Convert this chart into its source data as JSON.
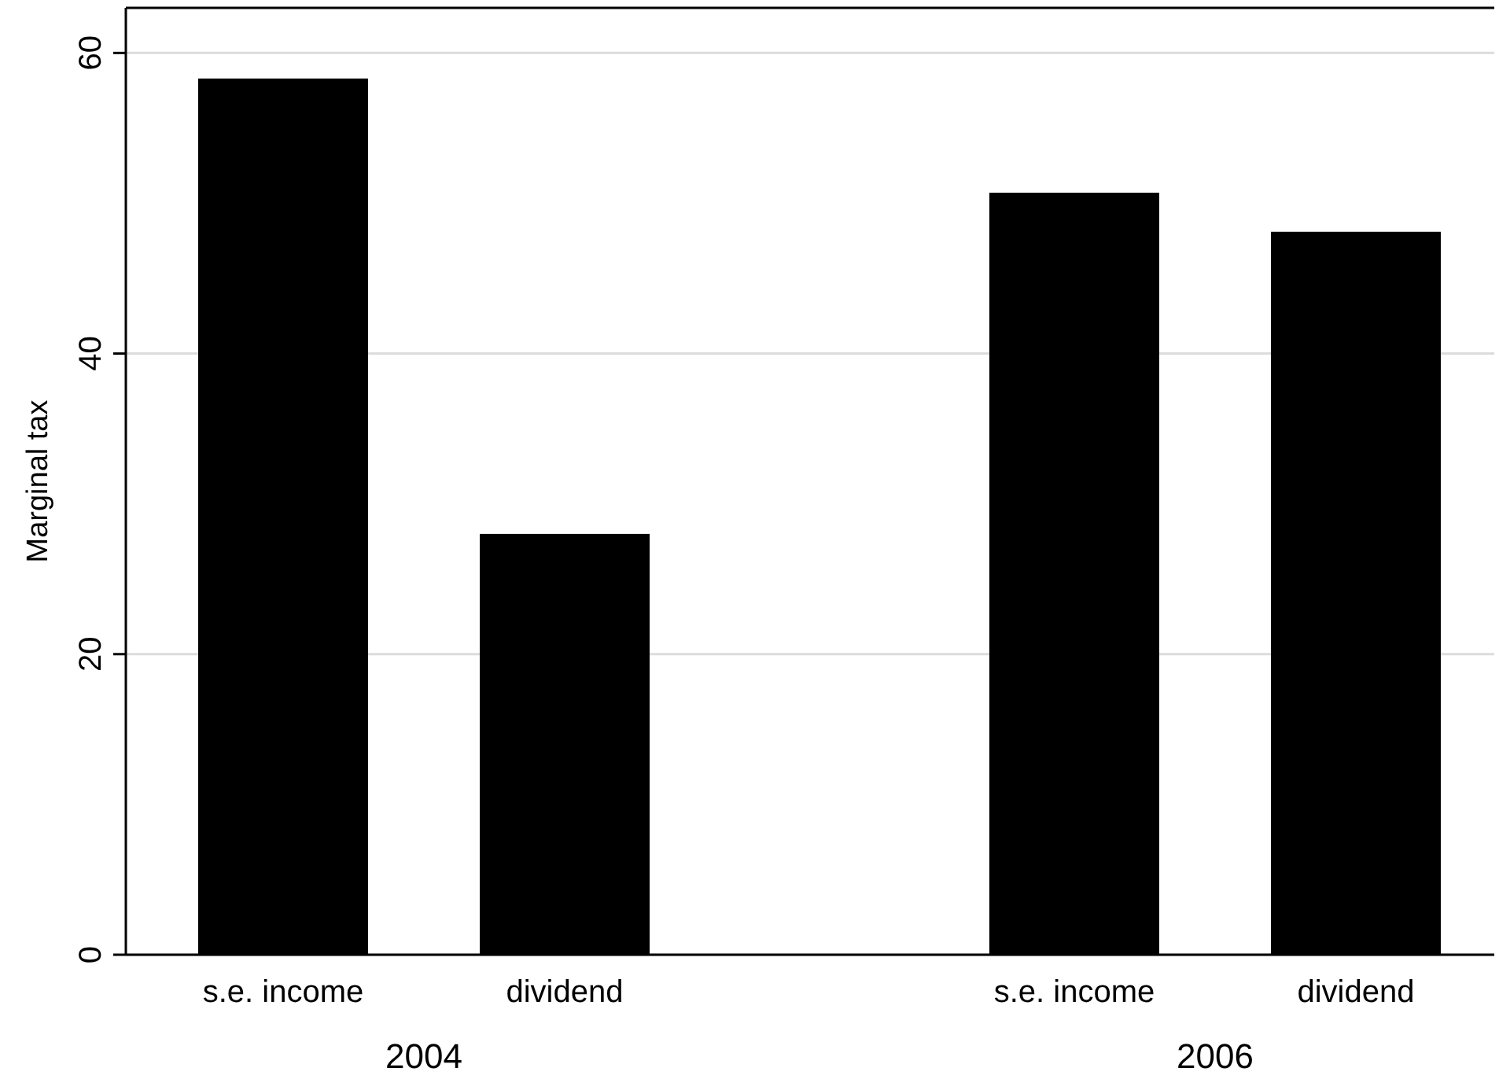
{
  "chart_data": {
    "type": "bar",
    "ylabel": "Marginal tax",
    "categories": [
      "s.e. income",
      "dividend",
      "s.e. income",
      "dividend"
    ],
    "values": [
      58.3,
      28.0,
      50.7,
      48.1
    ],
    "color": "#000000",
    "ylim": [
      0,
      63
    ],
    "yticks": [
      0,
      20,
      40,
      60
    ],
    "grid": "y",
    "annotations": [
      "2004",
      "2006"
    ]
  }
}
